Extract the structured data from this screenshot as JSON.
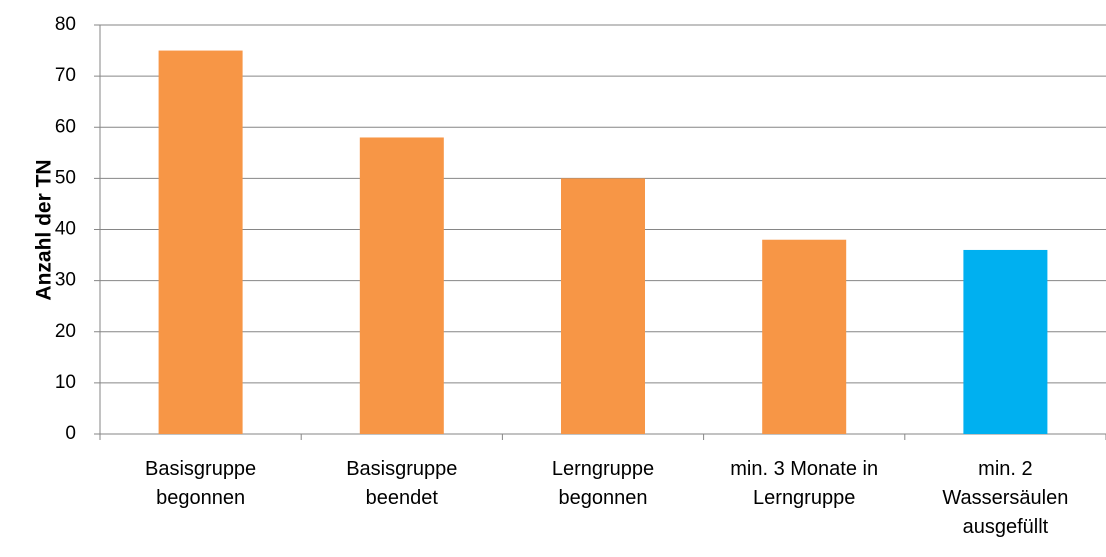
{
  "chart_data": {
    "type": "bar",
    "y_label": "Anzahl der TN",
    "categories": [
      "Basisgruppe begonnen",
      "Basisgruppe beendet",
      "Lerngruppe begonnen",
      "min. 3 Monate in Lerngruppe",
      "min. 2 Wassersäulen ausgefüllt"
    ],
    "values": [
      75,
      58,
      50,
      38,
      36
    ],
    "colors": [
      "#f79646",
      "#f79646",
      "#f79646",
      "#f79646",
      "#00b0f0"
    ],
    "ylim": [
      0,
      80
    ],
    "yticks": [
      0,
      10,
      20,
      30,
      40,
      50,
      60,
      70,
      80
    ],
    "grid": true
  }
}
